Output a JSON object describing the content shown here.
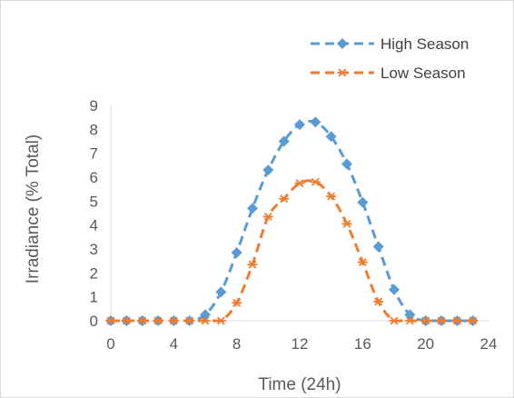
{
  "chart_data": {
    "type": "line",
    "title": "",
    "xlabel": "Time (24h)",
    "ylabel": "Irradiance (% Total)",
    "xlim": [
      0,
      24
    ],
    "ylim": [
      0,
      9
    ],
    "xticks": [
      "0",
      "4",
      "8",
      "12",
      "16",
      "20",
      "24"
    ],
    "yticks": [
      "0",
      "1",
      "2",
      "3",
      "4",
      "5",
      "6",
      "7",
      "8",
      "9"
    ],
    "grid": false,
    "legend_position": "top-right",
    "x": [
      0,
      1,
      2,
      3,
      4,
      5,
      6,
      7,
      8,
      9,
      10,
      11,
      12,
      13,
      14,
      15,
      16,
      17,
      18,
      19,
      20,
      21,
      22,
      23
    ],
    "series": [
      {
        "name": "High Season",
        "color": "#5B9BD5",
        "marker": "diamond",
        "line_style": "dashed",
        "values": [
          0,
          0,
          0,
          0,
          0,
          0,
          0.25,
          1.2,
          2.85,
          4.7,
          6.3,
          7.5,
          8.2,
          8.3,
          7.7,
          6.55,
          4.95,
          3.1,
          1.3,
          0.25,
          0,
          0,
          0,
          0
        ]
      },
      {
        "name": "Low Season",
        "color": "#ED7D31",
        "marker": "star",
        "line_style": "dashed",
        "values": [
          0,
          0,
          0,
          0,
          0,
          0,
          0,
          0,
          0.75,
          2.35,
          4.35,
          5.1,
          5.75,
          5.8,
          5.2,
          4.05,
          2.45,
          0.8,
          0,
          0,
          0,
          0,
          0,
          0
        ]
      }
    ]
  }
}
